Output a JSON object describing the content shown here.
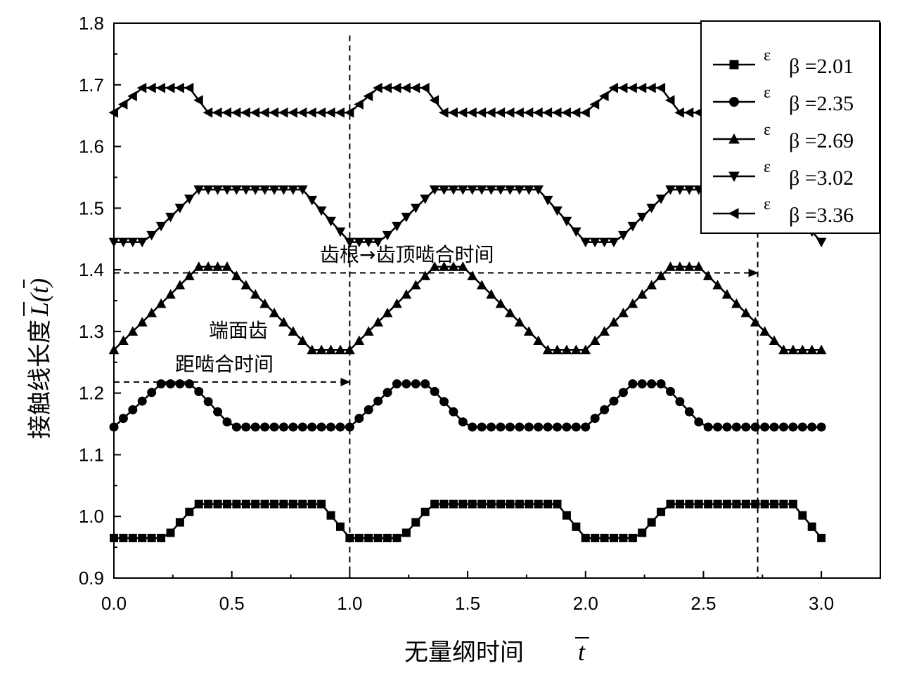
{
  "chart_data": {
    "type": "line",
    "title": "",
    "xlabel": "无量纲时间",
    "xlabel_symbol": "t",
    "ylabel": "接触线长度",
    "ylabel_symbol": "L(t)",
    "xlim": [
      0,
      3.25
    ],
    "ylim": [
      0.9,
      1.8
    ],
    "xticks": [
      "0.0",
      "0.5",
      "1.0",
      "1.5",
      "2.0",
      "2.5",
      "3.0"
    ],
    "yticks": [
      "0.9",
      "1.0",
      "1.1",
      "1.2",
      "1.3",
      "1.4",
      "1.5",
      "1.6",
      "1.7",
      "1.8"
    ],
    "grid": false,
    "legend_position": "top-right",
    "series": [
      {
        "name": "ε β =2.01",
        "legend_eps": "ε",
        "legend_rest": "β =2.01",
        "marker": "square",
        "low": 0.965,
        "high": 1.02,
        "keypoints": [
          [
            0,
            0.965
          ],
          [
            0.22,
            0.965
          ],
          [
            0.35,
            1.02
          ],
          [
            0.88,
            1.02
          ],
          [
            1.0,
            0.965
          ]
        ]
      },
      {
        "name": "ε β =2.35",
        "legend_eps": "ε",
        "legend_rest": "β =2.35",
        "marker": "circle",
        "low": 1.145,
        "high": 1.215,
        "keypoints": [
          [
            0,
            1.145
          ],
          [
            0.2,
            1.215
          ],
          [
            0.33,
            1.215
          ],
          [
            0.5,
            1.145
          ],
          [
            1.0,
            1.145
          ]
        ]
      },
      {
        "name": "ε β =2.69",
        "legend_eps": "ε",
        "legend_rest": "β =2.69",
        "marker": "triangle-up",
        "low": 1.27,
        "high": 1.405,
        "keypoints": [
          [
            0,
            1.27
          ],
          [
            0.36,
            1.405
          ],
          [
            0.48,
            1.405
          ],
          [
            0.84,
            1.27
          ],
          [
            1.0,
            1.27
          ]
        ]
      },
      {
        "name": "ε β =3.02",
        "legend_eps": "ε",
        "legend_rest": "β =3.02",
        "marker": "triangle-down",
        "low": 1.445,
        "high": 1.53,
        "keypoints": [
          [
            0,
            1.445
          ],
          [
            0.13,
            1.445
          ],
          [
            0.36,
            1.53
          ],
          [
            0.8,
            1.53
          ],
          [
            1.0,
            1.445
          ]
        ]
      },
      {
        "name": "ε β =3.36",
        "legend_eps": "ε",
        "legend_rest": "β =3.36",
        "marker": "triangle-left",
        "low": 1.655,
        "high": 1.695,
        "keypoints": [
          [
            0,
            1.655
          ],
          [
            0.12,
            1.695
          ],
          [
            0.32,
            1.695
          ],
          [
            0.4,
            1.655
          ],
          [
            1.0,
            1.655
          ]
        ]
      }
    ],
    "period": 1.0,
    "x_end": 3.0,
    "marker_step": 0.04,
    "vlines": [
      1.0,
      2.73
    ],
    "annotations": [
      {
        "id": "root-to-tip",
        "text": "齿根→齿顶啮合时间",
        "arrow_from": [
          0,
          1.395
        ],
        "arrow_to": [
          2.73,
          1.395
        ]
      },
      {
        "id": "transverse-line1",
        "text": "端面齿"
      },
      {
        "id": "transverse-line2",
        "text": "距啮合时间",
        "arrow_from": [
          0,
          1.218
        ],
        "arrow_to": [
          1.0,
          1.218
        ]
      }
    ]
  }
}
